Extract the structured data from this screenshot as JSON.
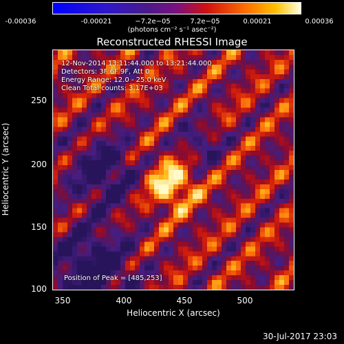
{
  "colorbar": {
    "ticks": [
      "-0.00036",
      "-0.00021",
      "−7.2e−05",
      "7.2e−05",
      "0.00021",
      "0.00036"
    ],
    "units": "(photons cm⁻² s⁻¹ asec⁻²)"
  },
  "title": "Reconstructed RHESSI Image",
  "annotations": {
    "time": "12-Nov-2014 13:11:44.000 to 13:21:44.000",
    "detectors": "Detectors: 3F 6F 9F, Att 0",
    "energy": "Energy Range: 12.0 - 25.0 keV",
    "clean": "Clean      Total counts: 3.17E+03",
    "peak": "Position of Peak = [485,253]"
  },
  "axes": {
    "xlabel": "Heliocentric X (arcsec)",
    "ylabel": "Heliocentric Y (arcsec)",
    "xticks": [
      "350",
      "400",
      "450",
      "500"
    ],
    "yticks": [
      "250",
      "200",
      "150",
      "100"
    ]
  },
  "footer": "30-Jul-2017 23:03"
}
